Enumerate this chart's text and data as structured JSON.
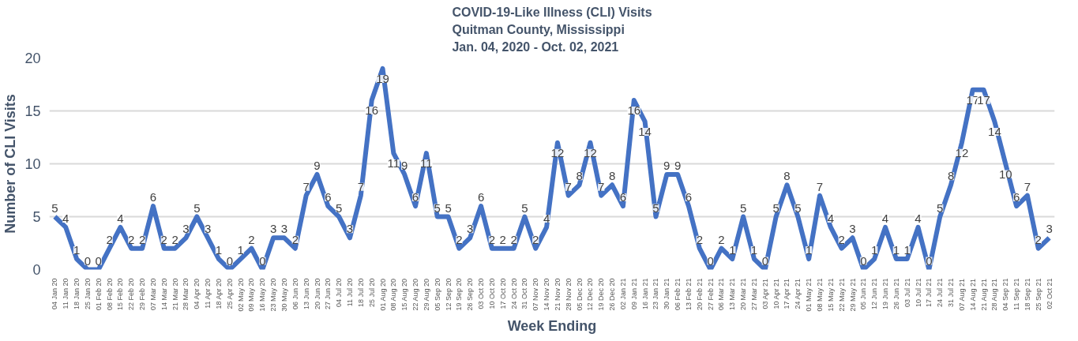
{
  "chart_data": {
    "type": "line",
    "title": "COVID-19-Like Illness (CLI) Visits\nQuitman County, Mississippi\nJan. 04, 2020 - Oct. 02, 2021",
    "xlabel": "Week Ending",
    "ylabel": "Number of CLI Visits",
    "categories": [
      "04 Jan 20",
      "11 Jan 20",
      "18 Jan 20",
      "25 Jan 20",
      "01 Feb 20",
      "08 Feb 20",
      "15 Feb 20",
      "22 Feb 20",
      "29 Feb 20",
      "07 Mar 20",
      "14 Mar 20",
      "21 Mar 20",
      "28 Mar 20",
      "04 Apr 20",
      "11 Apr 20",
      "18 Apr 20",
      "25 Apr 20",
      "02 May 20",
      "09 May 20",
      "16 May 20",
      "23 May 20",
      "30 May 20",
      "06 Jun 20",
      "13 Jun 20",
      "20 Jun 20",
      "27 Jun 20",
      "04 Jul 20",
      "11 Jul 20",
      "18 Jul 20",
      "25 Jul 20",
      "01 Aug 20",
      "08 Aug 20",
      "15 Aug 20",
      "22 Aug 20",
      "29 Aug 20",
      "05 Sep 20",
      "12 Sep 20",
      "19 Sep 20",
      "26 Sep 20",
      "03 Oct 20",
      "10 Oct 20",
      "17 Oct 20",
      "24 Oct 20",
      "31 Oct 20",
      "07 Nov 20",
      "14 Nov 20",
      "21 Nov 20",
      "28 Nov 20",
      "05 Dec 20",
      "12 Dec 20",
      "19 Dec 20",
      "26 Dec 20",
      "02 Jan 21",
      "09 Jan 21",
      "16 Jan 21",
      "23 Jan 21",
      "30 Jan 21",
      "06 Feb 21",
      "13 Feb 21",
      "20 Feb 21",
      "27 Feb 21",
      "06 Mar 21",
      "13 Mar 21",
      "20 Mar 21",
      "27 Mar 21",
      "03 Apr 21",
      "10 Apr 21",
      "17 Apr 21",
      "24 Apr 21",
      "01 May 21",
      "08 May 21",
      "15 May 21",
      "22 May 21",
      "29 May 21",
      "05 Jun 21",
      "12 Jun 21",
      "19 Jun 21",
      "26 Jun 21",
      "03 Jul 21",
      "10 Jul 21",
      "17 Jul 21",
      "24 Jul 21",
      "31 Jul 21",
      "07 Aug 21",
      "14 Aug 21",
      "21 Aug 21",
      "28 Aug 21",
      "04 Sep 21",
      "11 Sep 21",
      "18 Sep 21",
      "25 Sep 21",
      "02 Oct 21"
    ],
    "series": [
      {
        "color": "#4472c4",
        "values": [
          5,
          4,
          1,
          0,
          0,
          2,
          4,
          2,
          2,
          6,
          2,
          2,
          3,
          5,
          3,
          1,
          0,
          1,
          2,
          0,
          3,
          3,
          2,
          7,
          9,
          6,
          5,
          3,
          7,
          16,
          19,
          11,
          9,
          6,
          11,
          5,
          5,
          2,
          3,
          6,
          2,
          2,
          2,
          5,
          2,
          4,
          12,
          7,
          8,
          12,
          7,
          8,
          6,
          16,
          14,
          5,
          9,
          9,
          6,
          2,
          0,
          2,
          1,
          5,
          1,
          0,
          5,
          8,
          5,
          1,
          7,
          4,
          2,
          3,
          0,
          1,
          4,
          1,
          1,
          4,
          0,
          5,
          8,
          12,
          17,
          17,
          14,
          10,
          6,
          7,
          2,
          3
        ]
      }
    ],
    "ylim": [
      0,
      20
    ],
    "yticks": [
      0,
      5,
      10,
      15,
      20
    ],
    "grid": "y",
    "data_labels": true,
    "marker": "none",
    "line_style": "solid"
  }
}
